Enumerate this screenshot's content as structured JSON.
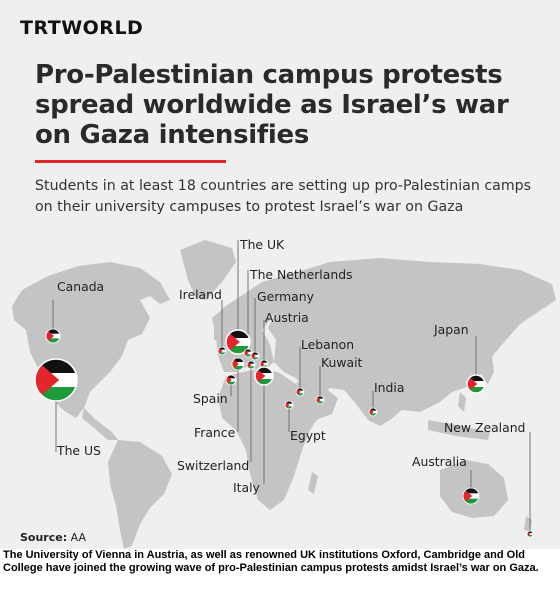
{
  "brand": "TRTWORLD",
  "title": "Pro-Palestinian campus protests spread worldwide as Israel’s war on Gaza intensifies",
  "subtitle": "Students in at least 18 countries are setting up pro-Palestinian camps on their university campuses to protest Israel’s war on Gaza",
  "source_label": "Source:",
  "source_value": "AA",
  "caption": "The University of Vienna in Austria, as well as renowned UK institutions Oxford, Cambridge and Old College have joined the growing wave of pro-Palestinian campus protests amidst Israel’s war on Gaza.",
  "colors": {
    "accent_red": "#e3262d",
    "land": "#c4c4c4",
    "flag_black": "#111111",
    "flag_white": "#ffffff",
    "flag_green": "#1f9a3b",
    "flag_red": "#e3262d"
  },
  "icon": "palestinian-flag-marker",
  "countries": [
    {
      "id": "canada",
      "name": "Canada"
    },
    {
      "id": "the-us",
      "name": "The US"
    },
    {
      "id": "ireland",
      "name": "Ireland"
    },
    {
      "id": "the-uk",
      "name": "The UK"
    },
    {
      "id": "the-netherlands",
      "name": "The Netherlands"
    },
    {
      "id": "germany",
      "name": "Germany"
    },
    {
      "id": "austria",
      "name": "Austria"
    },
    {
      "id": "spain",
      "name": "Spain"
    },
    {
      "id": "france",
      "name": "France"
    },
    {
      "id": "switzerland",
      "name": "Switzerland"
    },
    {
      "id": "italy",
      "name": "Italy"
    },
    {
      "id": "lebanon",
      "name": "Lebanon"
    },
    {
      "id": "kuwait",
      "name": "Kuwait"
    },
    {
      "id": "egypt",
      "name": "Egypt"
    },
    {
      "id": "india",
      "name": "India"
    },
    {
      "id": "japan",
      "name": "Japan"
    },
    {
      "id": "australia",
      "name": "Australia"
    },
    {
      "id": "new-zealand",
      "name": "New Zealand"
    }
  ]
}
